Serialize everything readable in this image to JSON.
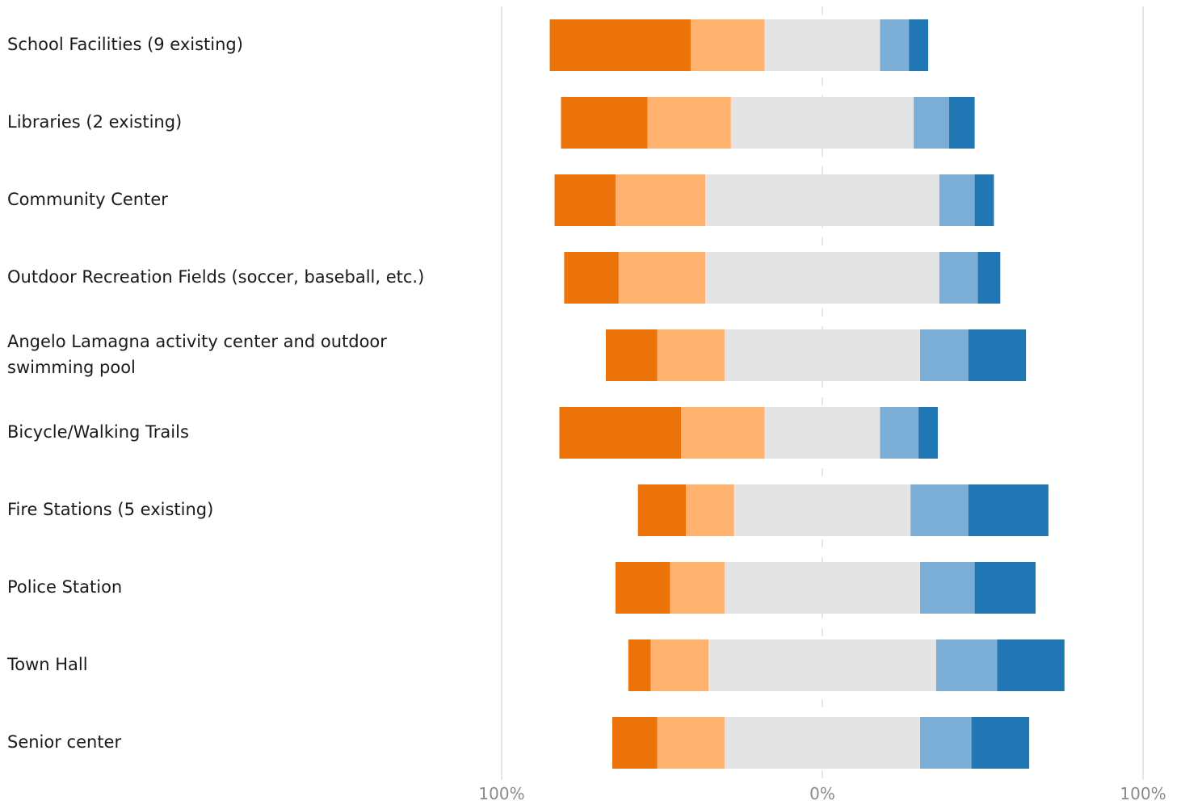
{
  "chart_data": {
    "type": "bar",
    "subtype": "diverging-stacked",
    "title": "",
    "xlabel": "",
    "ylabel": "",
    "xlim": [
      -100,
      100
    ],
    "x_ticks": [
      {
        "value": -100,
        "label": "100%"
      },
      {
        "value": 0,
        "label": "0%"
      },
      {
        "value": 100,
        "label": "100%"
      }
    ],
    "grid": true,
    "legend": "none",
    "categories": [
      [
        "School Facilities (9 existing)"
      ],
      [
        "Libraries (2 existing)"
      ],
      [
        "Community Center"
      ],
      [
        "Outdoor Recreation Fields (soccer, baseball, etc.)"
      ],
      [
        "Angelo Lamagna activity center and outdoor",
        "swimming pool"
      ],
      [
        "Bicycle/Walking Trails"
      ],
      [
        "Fire Stations (5 existing)"
      ],
      [
        "Police Station"
      ],
      [
        "Town Hall"
      ],
      [
        "Senior center"
      ]
    ],
    "series": [
      {
        "color": "#eb730a",
        "values": [
          44,
          27,
          19,
          17,
          16,
          38,
          15,
          17,
          7,
          14
        ]
      },
      {
        "color": "#ffb170",
        "values": [
          23,
          26,
          28,
          27,
          21,
          26,
          15,
          17,
          18,
          21
        ]
      },
      {
        "color": "#e4e4e4",
        "values": [
          36,
          57,
          73,
          73,
          61,
          36,
          55,
          61,
          71,
          61
        ]
      },
      {
        "color": "#7aaed6",
        "values": [
          9,
          11,
          11,
          12,
          15,
          12,
          18,
          17,
          19,
          16
        ]
      },
      {
        "color": "#2077b4",
        "values": [
          6,
          8,
          6,
          7,
          18,
          6,
          25,
          19,
          21,
          18
        ]
      }
    ]
  }
}
